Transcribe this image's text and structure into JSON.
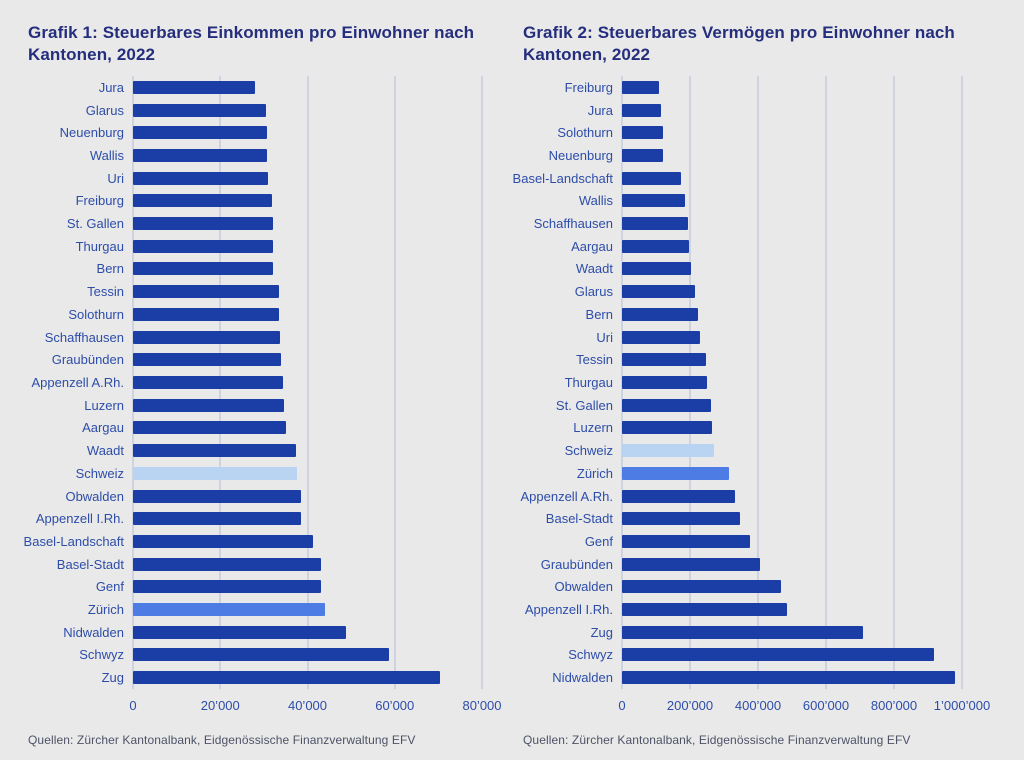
{
  "colors": {
    "page_background": "#e9e9e9",
    "bar_default": "#1b3ea6",
    "bar_highlight_light": "#b9d3f2",
    "bar_highlight_medium": "#4d7de4",
    "title_text": "#252e7d",
    "label_text": "#2d4da9",
    "gridline": "#b5bdd6",
    "source_text": "#4d5266"
  },
  "chart_data": [
    {
      "type": "bar",
      "orientation": "horizontal",
      "title_line1": "Grafik 1: Steuerbares Einkommen pro Einwohner nach",
      "title_line2": "Kantonen, 2022",
      "categories": [
        "Jura",
        "Glarus",
        "Neuenburg",
        "Wallis",
        "Uri",
        "Freiburg",
        "St. Gallen",
        "Thurgau",
        "Bern",
        "Tessin",
        "Solothurn",
        "Schaffhausen",
        "Graubünden",
        "Appenzell A.Rh.",
        "Luzern",
        "Aargau",
        "Waadt",
        "Schweiz",
        "Obwalden",
        "Appenzell I.Rh.",
        "Basel-Landschaft",
        "Basel-Stadt",
        "Genf",
        "Zürich",
        "Nidwalden",
        "Schwyz",
        "Zug"
      ],
      "values": [
        28000,
        30600,
        30700,
        30700,
        31000,
        31900,
        32000,
        32200,
        32200,
        33500,
        33500,
        33600,
        34000,
        34400,
        34600,
        35100,
        37300,
        37700,
        38400,
        38500,
        41300,
        43000,
        43100,
        44000,
        48800,
        58600,
        70400
      ],
      "highlight_colors": {
        "Schweiz": "#b9d3f2",
        "Zürich": "#4d7de4"
      },
      "x_ticks": [
        "0",
        "20’000",
        "40’000",
        "60’000",
        "80’000"
      ],
      "x_tick_values": [
        0,
        20000,
        40000,
        60000,
        80000
      ],
      "xlim": [
        0,
        80000
      ],
      "xlabel": "",
      "ylabel": "",
      "grid": "vertical",
      "legend": "none",
      "source": "Quellen: Zürcher Kantonalbank, Eidgenössische Finanzverwaltung EFV"
    },
    {
      "type": "bar",
      "orientation": "horizontal",
      "title_line1": "Grafik 2: Steuerbares Vermögen pro Einwohner nach",
      "title_line2": "Kantonen, 2022",
      "categories": [
        "Freiburg",
        "Jura",
        "Solothurn",
        "Neuenburg",
        "Basel-Landschaft",
        "Wallis",
        "Schaffhausen",
        "Aargau",
        "Waadt",
        "Glarus",
        "Bern",
        "Uri",
        "Tessin",
        "Thurgau",
        "St. Gallen",
        "Luzern",
        "Schweiz",
        "Zürich",
        "Appenzell A.Rh.",
        "Basel-Stadt",
        "Genf",
        "Graubünden",
        "Obwalden",
        "Appenzell I.Rh.",
        "Zug",
        "Schwyz",
        "Nidwalden"
      ],
      "values": [
        110000,
        115000,
        120000,
        121000,
        173000,
        186000,
        195000,
        198000,
        204000,
        214000,
        223000,
        230000,
        248000,
        250000,
        262000,
        266000,
        270000,
        315000,
        333000,
        348000,
        376000,
        407000,
        468000,
        485000,
        710000,
        918000,
        980000
      ],
      "highlight_colors": {
        "Schweiz": "#b9d3f2",
        "Zürich": "#4d7de4"
      },
      "x_ticks": [
        "0",
        "200’000",
        "400’000",
        "600’000",
        "800’000",
        "1’000’000"
      ],
      "x_tick_values": [
        0,
        200000,
        400000,
        600000,
        800000,
        1000000
      ],
      "xlim": [
        0,
        1000000
      ],
      "xlabel": "",
      "ylabel": "",
      "grid": "vertical",
      "legend": "none",
      "source": "Quellen: Zürcher Kantonalbank, Eidgenössische Finanzverwaltung EFV"
    }
  ]
}
